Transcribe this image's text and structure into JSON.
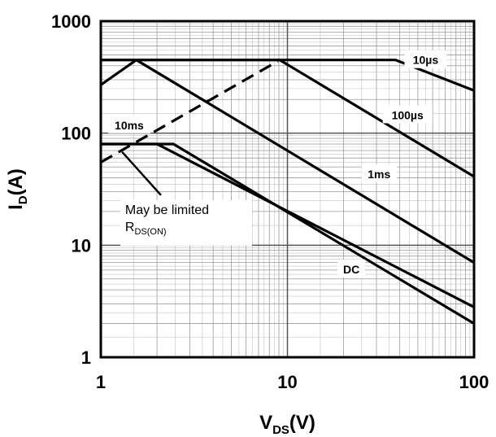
{
  "chart_data": {
    "type": "line",
    "xscale": "log",
    "yscale": "log",
    "xlim": [
      1,
      100
    ],
    "ylim": [
      1,
      1000
    ],
    "grid": true,
    "x_ticks": [
      "1",
      "10",
      "100"
    ],
    "y_ticks": [
      "1",
      "10",
      "100",
      "1000"
    ],
    "xlabel": {
      "main": "V",
      "sub": "DS",
      "tail": "(V)"
    },
    "ylabel": {
      "main": "I",
      "sub": "D",
      "tail": "(A)"
    },
    "series": [
      {
        "name": "10µs",
        "x": [
          1,
          38,
          100
        ],
        "y": [
          450,
          450,
          240
        ],
        "label_at": [
          55,
          450
        ]
      },
      {
        "name": "100µs",
        "x": [
          1,
          9.1,
          100
        ],
        "y": [
          450,
          450,
          41
        ],
        "label_at": [
          44,
          145
        ]
      },
      {
        "name": "1ms",
        "x": [
          1,
          1.55,
          100
        ],
        "y": [
          270,
          450,
          7
        ],
        "label_at": [
          31,
          43
        ]
      },
      {
        "name": "10ms",
        "x": [
          1,
          2.0,
          100
        ],
        "y": [
          80,
          80,
          2.8
        ],
        "label_at": [
          1.42,
          118
        ]
      },
      {
        "name": "DC",
        "x": [
          1,
          2.45,
          100
        ],
        "y": [
          80,
          80,
          2.0
        ],
        "label_at": [
          22,
          6.1
        ]
      }
    ],
    "rdson_limit": {
      "x": [
        1,
        8.9
      ],
      "y": [
        55,
        440
      ],
      "style": "dashed"
    },
    "annotation": {
      "line1": "May be limited",
      "line2_main": "R",
      "line2_sub": "DS(ON)",
      "pointer_x": [
        1.3,
        2.1
      ],
      "pointer_y": [
        68,
        28
      ]
    }
  }
}
